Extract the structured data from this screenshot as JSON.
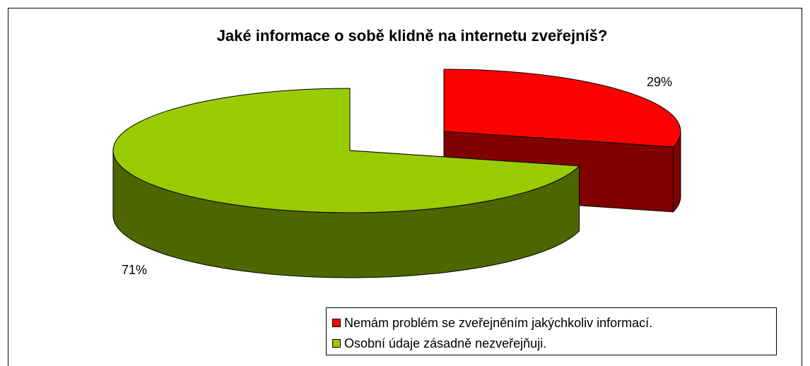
{
  "chart_data": {
    "type": "pie",
    "title": "Jaké informace o sobě klidně na internetu zveřejníš?",
    "categories": [
      "Nemám problém se zveřejněním jakýchkoliv informací.",
      "Osobní údaje zásadně nezveřejňuji."
    ],
    "values": [
      29,
      71
    ],
    "value_labels": [
      "29%",
      "71%"
    ],
    "colors": [
      "#ff0000",
      "#99cc00"
    ],
    "legend": "bottom-right"
  }
}
